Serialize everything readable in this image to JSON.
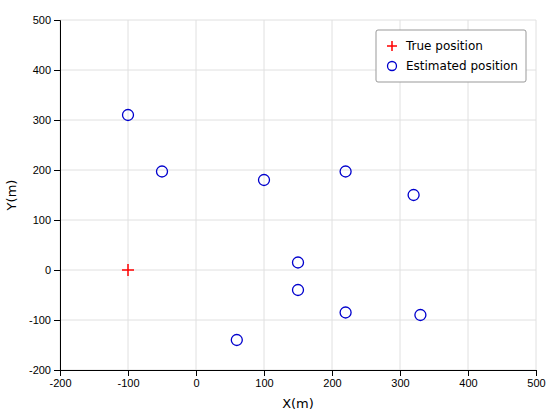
{
  "chart_data": {
    "type": "scatter",
    "xlabel": "X(m)",
    "ylabel": "Y(m)",
    "series": [
      {
        "name": "True position",
        "color": "#ff0000",
        "marker": "plus",
        "x": [
          -100
        ],
        "values": [
          0
        ]
      },
      {
        "name": "Estimated position",
        "color": "#0000cd",
        "marker": "circle",
        "x": [
          -100,
          -50,
          60,
          100,
          150,
          150,
          220,
          220,
          320,
          330
        ],
        "values": [
          310,
          197,
          -140,
          180,
          15,
          -40,
          197,
          -85,
          150,
          -90
        ]
      }
    ],
    "xlim": [
      -200,
      500
    ],
    "ylim": [
      -200,
      500
    ],
    "xticks": [
      -200,
      -100,
      0,
      100,
      200,
      300,
      400,
      500
    ],
    "yticks": [
      -200,
      -100,
      0,
      100,
      200,
      300,
      400,
      500
    ],
    "grid": true,
    "legend": "top-right"
  }
}
